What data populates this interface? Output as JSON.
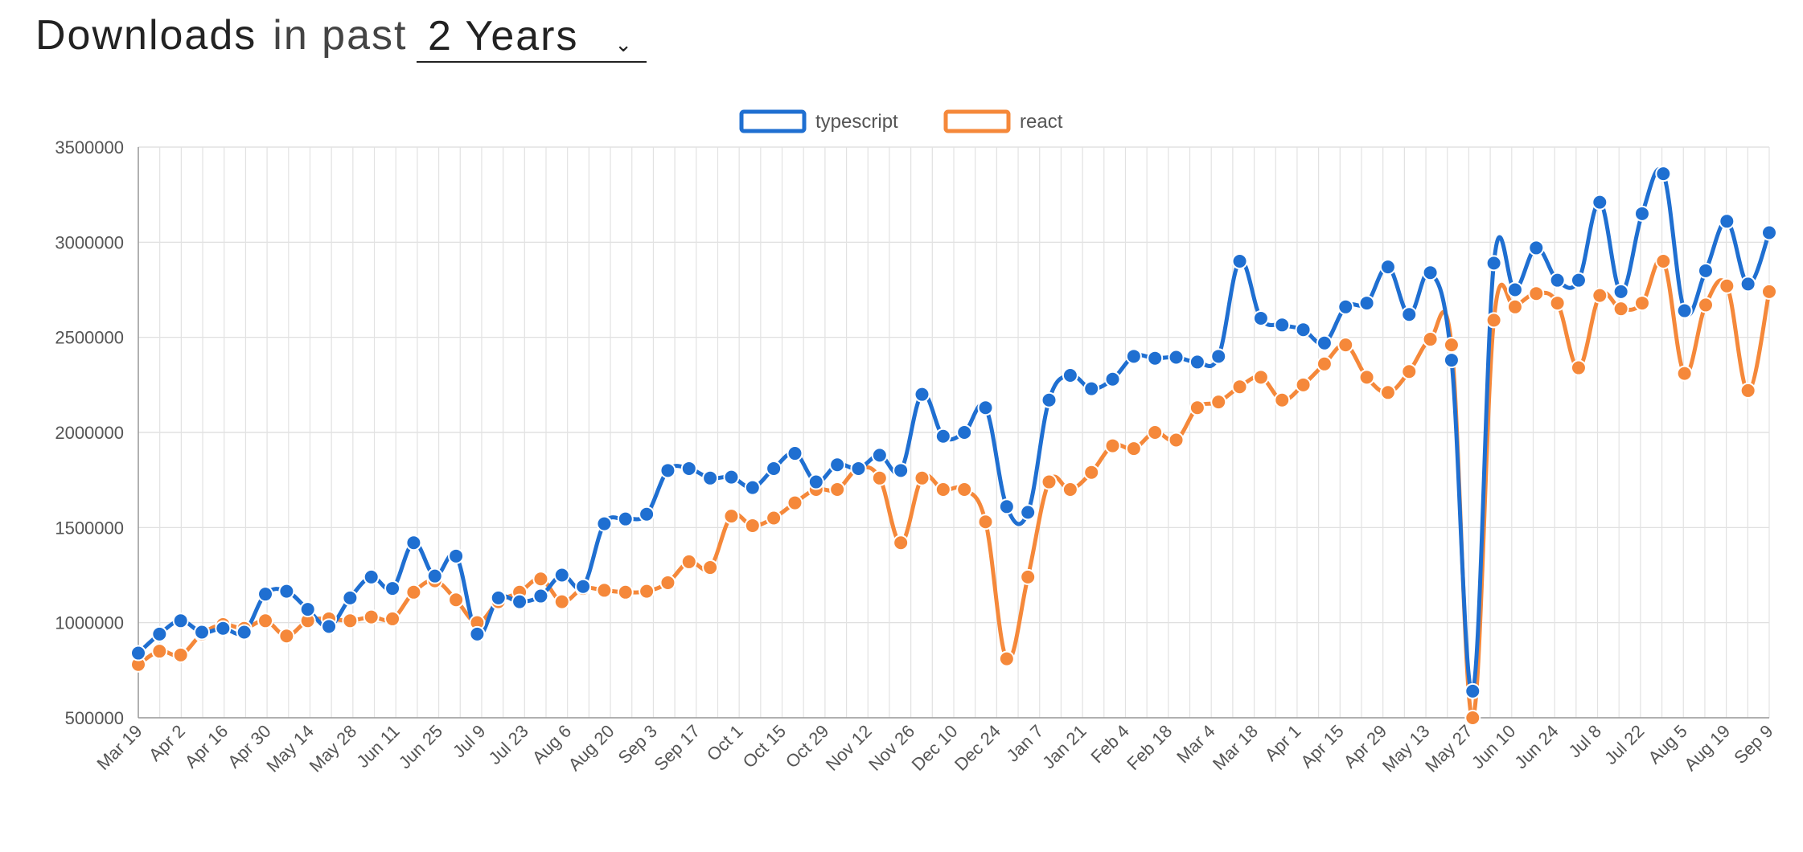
{
  "header": {
    "title": "Downloads",
    "subtitle": "in past",
    "period_selected": "2 Years"
  },
  "icons": {
    "dropdown": "chevron-down-icon"
  },
  "chart_data": {
    "type": "line",
    "title": "",
    "xlabel": "",
    "ylabel": "",
    "ylim": [
      500000,
      3500000
    ],
    "yticks": [
      "3500000",
      "3000000",
      "2500000",
      "2000000",
      "1500000",
      "1000000",
      "500000"
    ],
    "grid": true,
    "legend_position": "top-center",
    "x_tick_labels": [
      "Mar 19",
      "Apr 2",
      "Apr 16",
      "Apr 30",
      "May 14",
      "May 28",
      "Jun 11",
      "Jun 25",
      "Jul 9",
      "Jul 23",
      "Aug 6",
      "Aug 20",
      "Sep 3",
      "Sep 17",
      "Oct 1",
      "Oct 15",
      "Oct 29",
      "Nov 12",
      "Nov 26",
      "Dec 10",
      "Dec 24",
      "Jan 7",
      "Jan 21",
      "Feb 4",
      "Feb 18",
      "Mar 4",
      "Mar 18",
      "Apr 1",
      "Apr 15",
      "Apr 29",
      "May 13",
      "May 27",
      "Jun 10",
      "Jun 24",
      "Jul 8",
      "Jul 22",
      "Aug 5",
      "Aug 19",
      "Sep 9"
    ],
    "series": [
      {
        "name": "typescript",
        "color": "#1f6fd1",
        "values": [
          840000,
          940000,
          1010000,
          950000,
          970000,
          950000,
          1150000,
          1165000,
          1070000,
          980000,
          1130000,
          1240000,
          1180000,
          1420000,
          1245000,
          1350000,
          940000,
          1130000,
          1110000,
          1140000,
          1250000,
          1190000,
          1520000,
          1545000,
          1570000,
          1800000,
          1810000,
          1760000,
          1765000,
          1710000,
          1810000,
          1890000,
          1740000,
          1830000,
          1810000,
          1880000,
          1800000,
          2200000,
          1980000,
          2000000,
          2130000,
          1610000,
          1580000,
          2170000,
          2300000,
          2230000,
          2280000,
          2400000,
          2390000,
          2395000,
          2370000,
          2400000,
          2900000,
          2600000,
          2565000,
          2540000,
          2470000,
          2660000,
          2680000,
          2870000,
          2620000,
          2840000,
          2380000,
          640000,
          2890000,
          2750000,
          2970000,
          2800000,
          2800000,
          3210000,
          2740000,
          3150000,
          3360000,
          2640000,
          2850000,
          3110000,
          2780000,
          3050000
        ]
      },
      {
        "name": "react",
        "color": "#f5883a",
        "values": [
          780000,
          850000,
          830000,
          940000,
          990000,
          970000,
          1010000,
          930000,
          1010000,
          1020000,
          1010000,
          1030000,
          1020000,
          1160000,
          1220000,
          1120000,
          1000000,
          1110000,
          1160000,
          1230000,
          1110000,
          1180000,
          1170000,
          1160000,
          1165000,
          1210000,
          1320000,
          1290000,
          1560000,
          1510000,
          1550000,
          1630000,
          1700000,
          1700000,
          1810000,
          1760000,
          1420000,
          1760000,
          1700000,
          1700000,
          1530000,
          810000,
          1240000,
          1740000,
          1700000,
          1790000,
          1930000,
          1915000,
          2000000,
          1960000,
          2130000,
          2160000,
          2240000,
          2290000,
          2170000,
          2250000,
          2360000,
          2460000,
          2290000,
          2210000,
          2320000,
          2490000,
          2460000,
          500000,
          2590000,
          2660000,
          2730000,
          2680000,
          2340000,
          2720000,
          2650000,
          2680000,
          2900000,
          2310000,
          2670000,
          2770000,
          2220000,
          2740000
        ]
      }
    ]
  }
}
